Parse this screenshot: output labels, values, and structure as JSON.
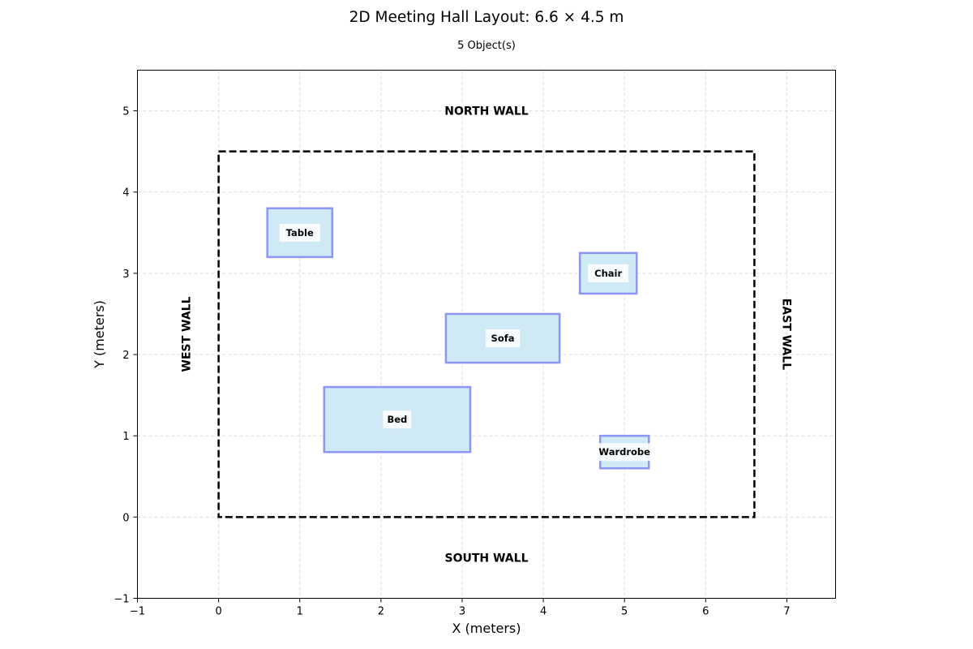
{
  "title": "2D Meeting Hall Layout: 6.6 × 4.5 m",
  "subtitle": "5 Object(s)",
  "chart_data": {
    "type": "floor-plan",
    "xlabel": "X (meters)",
    "ylabel": "Y (meters)",
    "xlim": [
      -1,
      7.6
    ],
    "ylim": [
      -1,
      5.5
    ],
    "x_ticks": [
      "−1",
      "0",
      "1",
      "2",
      "3",
      "4",
      "5",
      "6",
      "7"
    ],
    "x_tick_values": [
      -1,
      0,
      1,
      2,
      3,
      4,
      5,
      6,
      7
    ],
    "y_ticks": [
      "−1",
      "0",
      "1",
      "2",
      "3",
      "4",
      "5"
    ],
    "y_tick_values": [
      -1,
      0,
      1,
      2,
      3,
      4,
      5
    ],
    "grid": true,
    "room": {
      "x": 0,
      "y": 0,
      "width": 6.6,
      "height": 4.5,
      "style": "dashed"
    },
    "walls": {
      "north": "NORTH WALL",
      "south": "SOUTH WALL",
      "west": "WEST WALL",
      "east": "EAST WALL"
    },
    "objects": [
      {
        "name": "Table",
        "x": 0.6,
        "y": 3.2,
        "width": 0.8,
        "height": 0.6
      },
      {
        "name": "Chair",
        "x": 4.45,
        "y": 2.75,
        "width": 0.7,
        "height": 0.5
      },
      {
        "name": "Sofa",
        "x": 2.8,
        "y": 1.9,
        "width": 1.4,
        "height": 0.6
      },
      {
        "name": "Bed",
        "x": 1.3,
        "y": 0.8,
        "width": 1.8,
        "height": 0.8
      },
      {
        "name": "Wardrobe",
        "x": 4.7,
        "y": 0.6,
        "width": 0.6,
        "height": 0.4
      }
    ],
    "colors": {
      "object_fill": "#d0eaf5",
      "object_edge": "#8c96f5",
      "room_edge": "#000000",
      "grid": "#dddddd"
    }
  }
}
